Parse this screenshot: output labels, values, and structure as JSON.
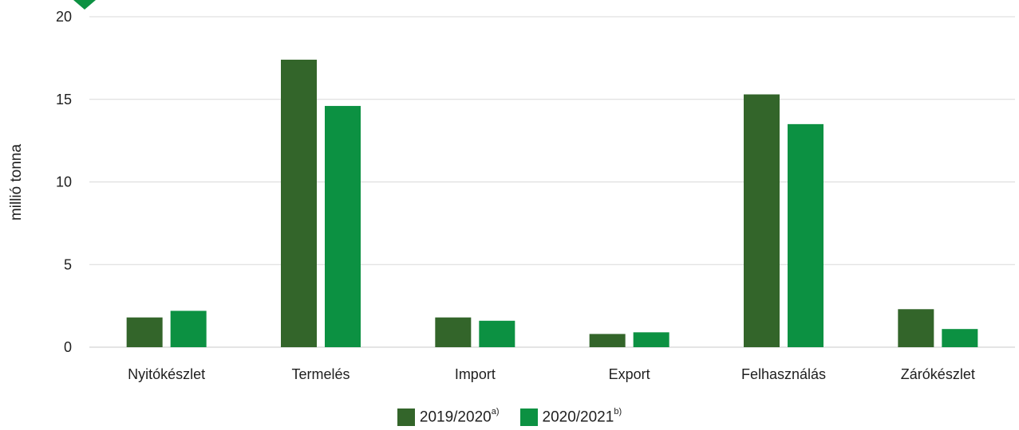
{
  "chart_data": {
    "type": "bar",
    "categories": [
      "Nyitókészlet",
      "Termelés",
      "Import",
      "Export",
      "Felhasználás",
      "Zárókészlet"
    ],
    "series": [
      {
        "name": "2019/2020",
        "name_sup": "a)",
        "color": "#33652a",
        "values": [
          1.8,
          17.4,
          1.8,
          0.8,
          15.3,
          2.3
        ]
      },
      {
        "name": "2020/2021",
        "name_sup": "b)",
        "color": "#0c9142",
        "values": [
          2.2,
          14.6,
          1.6,
          0.9,
          13.5,
          1.1
        ]
      }
    ],
    "ylabel": "millió tonna",
    "ylim": [
      0,
      20
    ],
    "yticks": [
      0,
      5,
      10,
      15,
      20
    ],
    "grid": true,
    "legend_position": "bottom"
  }
}
